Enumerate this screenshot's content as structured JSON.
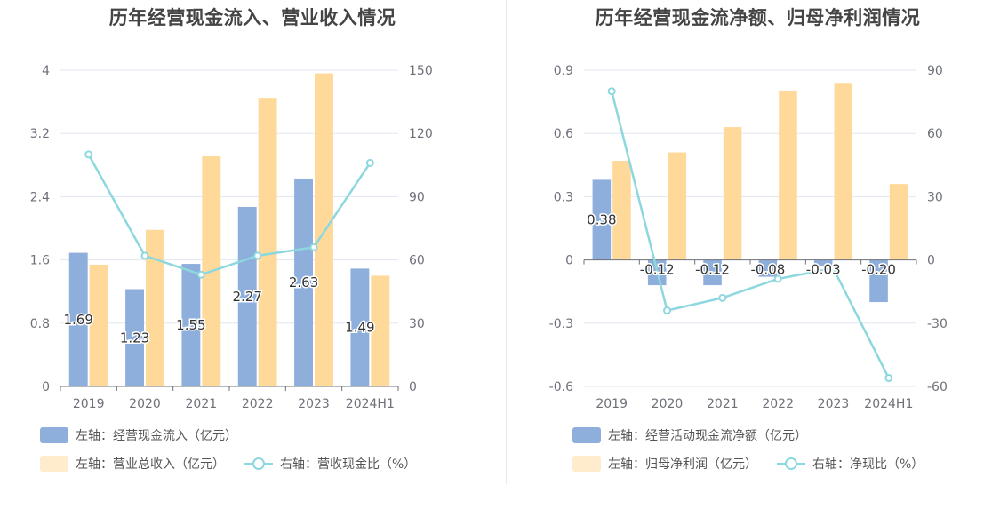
{
  "colors": {
    "blue_bar": "#8eaedc",
    "orange_bar": "#ffd99a",
    "line": "#8dd7df",
    "legend_orange_swatch": "#ffeccc"
  },
  "chart_data": [
    {
      "type": "bar",
      "title": "历年经营现金流入、营业收入情况",
      "categories": [
        "2019",
        "2020",
        "2021",
        "2022",
        "2023",
        "2024H1"
      ],
      "left_axis": {
        "ticks": [
          "0",
          "0.8",
          "1.6",
          "2.4",
          "3.2",
          "4"
        ],
        "ylim": [
          0,
          4
        ]
      },
      "right_axis": {
        "ticks": [
          "0",
          "30",
          "60",
          "90",
          "120",
          "150"
        ],
        "ylim": [
          0,
          150
        ]
      },
      "series": [
        {
          "name": "左轴：经营现金流入（亿元）",
          "axis": "left",
          "type": "bar",
          "values": [
            1.69,
            1.23,
            1.55,
            2.27,
            2.63,
            1.49
          ],
          "labels": [
            "1.69",
            "1.23",
            "1.55",
            "2.27",
            "2.63",
            "1.49"
          ]
        },
        {
          "name": "左轴：营业总收入（亿元）",
          "axis": "left",
          "type": "bar",
          "values": [
            1.54,
            1.98,
            2.91,
            3.65,
            3.96,
            1.4
          ]
        },
        {
          "name": "右轴：营收现金比（%）",
          "axis": "right",
          "type": "line",
          "values": [
            110,
            62,
            53,
            62,
            66,
            106
          ]
        }
      ],
      "legend": [
        "左轴：经营现金流入（亿元）",
        "左轴：营业总收入（亿元）",
        "右轴：营收现金比（%）"
      ],
      "legend_placement": "bottom",
      "grid": true
    },
    {
      "type": "bar",
      "title": "历年经营现金流净额、归母净利润情况",
      "categories": [
        "2019",
        "2020",
        "2021",
        "2022",
        "2023",
        "2024H1"
      ],
      "left_axis": {
        "ticks": [
          "-0.6",
          "-0.3",
          "0",
          "0.3",
          "0.6",
          "0.9"
        ],
        "ylim": [
          -0.6,
          0.9
        ]
      },
      "right_axis": {
        "ticks": [
          "-60",
          "-30",
          "0",
          "30",
          "60",
          "90"
        ],
        "ylim": [
          -60,
          90
        ]
      },
      "series": [
        {
          "name": "左轴：经营活动现金流净额（亿元）",
          "axis": "left",
          "type": "bar",
          "values": [
            0.38,
            -0.12,
            -0.12,
            -0.08,
            -0.03,
            -0.2
          ],
          "labels": [
            "0.38",
            "-0.12",
            "-0.12",
            "-0.08",
            "-0.03",
            "-0.20"
          ]
        },
        {
          "name": "左轴：归母净利润（亿元）",
          "axis": "left",
          "type": "bar",
          "values": [
            0.47,
            0.51,
            0.63,
            0.8,
            0.84,
            0.36
          ]
        },
        {
          "name": "右轴：净现比（%）",
          "axis": "right",
          "type": "line",
          "values": [
            80,
            -24,
            -18,
            -9,
            -4,
            -56
          ]
        }
      ],
      "legend": [
        "左轴：经营活动现金流净额（亿元）",
        "左轴：归母净利润（亿元）",
        "右轴：净现比（%）"
      ],
      "legend_placement": "bottom",
      "grid": true
    }
  ]
}
